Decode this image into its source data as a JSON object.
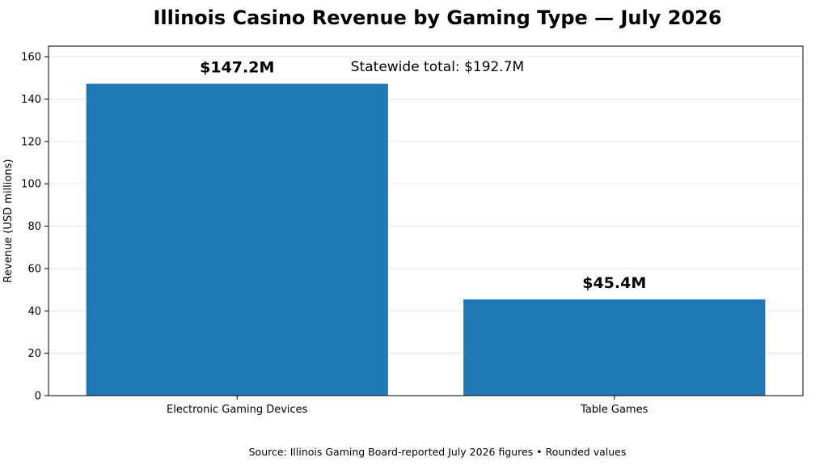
{
  "chart_data": {
    "type": "bar",
    "title": "Illinois Casino Revenue by Gaming Type — July 2026",
    "xlabel": "",
    "ylabel": "Revenue (USD millions)",
    "categories": [
      "Electronic Gaming Devices",
      "Table Games"
    ],
    "values": [
      147.2,
      45.4
    ],
    "data_labels": [
      "$147.2M",
      "$45.4M"
    ],
    "ylim": [
      0,
      165
    ],
    "yticks": [
      0,
      20,
      40,
      60,
      80,
      100,
      120,
      140,
      160
    ],
    "grid": true,
    "legend": "none",
    "bar_color": "#1f77b4",
    "annotation": "Statewide total: $192.7M",
    "footnote": "Source: Illinois Gaming Board-reported July 2026 figures • Rounded values"
  }
}
